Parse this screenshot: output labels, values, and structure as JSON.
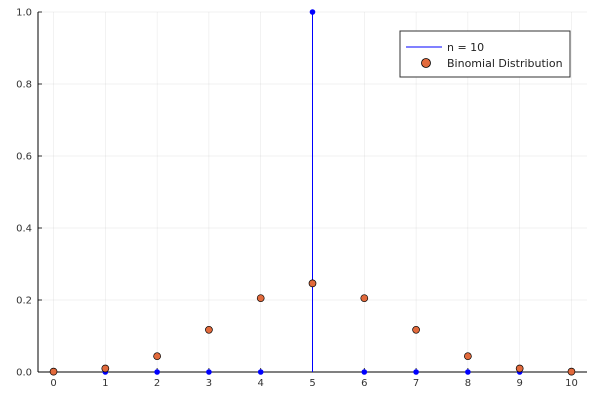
{
  "chart_data": {
    "type": "scatter",
    "title": "",
    "xlabel": "",
    "ylabel": "",
    "xlim": [
      -0.3,
      10.3
    ],
    "ylim": [
      0,
      1.0
    ],
    "x_ticks": [
      0,
      1,
      2,
      3,
      4,
      5,
      6,
      7,
      8,
      9,
      10
    ],
    "y_ticks": [
      0.0,
      0.2,
      0.4,
      0.6,
      0.8,
      1.0
    ],
    "x_tick_labels": [
      "0",
      "1",
      "2",
      "3",
      "4",
      "5",
      "6",
      "7",
      "8",
      "9",
      "10"
    ],
    "y_tick_labels": [
      "0.0",
      "0.2",
      "0.4",
      "0.6",
      "0.8",
      "1.0"
    ],
    "grid": true,
    "legend_position": "top-right",
    "series": [
      {
        "name": "n = 10",
        "kind": "stem",
        "color": "#0000ff",
        "x": [
          0,
          1,
          2,
          3,
          4,
          5,
          6,
          7,
          8,
          9,
          10
        ],
        "y": [
          0,
          0,
          0,
          0,
          0,
          1.0,
          0,
          0,
          0,
          0,
          0
        ]
      },
      {
        "name": "Binomial Distribution",
        "kind": "scatter",
        "color": "#e26a3c",
        "x": [
          0,
          1,
          2,
          3,
          4,
          5,
          6,
          7,
          8,
          9,
          10
        ],
        "y": [
          0.001,
          0.0098,
          0.0439,
          0.1172,
          0.2051,
          0.2461,
          0.2051,
          0.1172,
          0.0439,
          0.0098,
          0.001
        ]
      }
    ]
  }
}
